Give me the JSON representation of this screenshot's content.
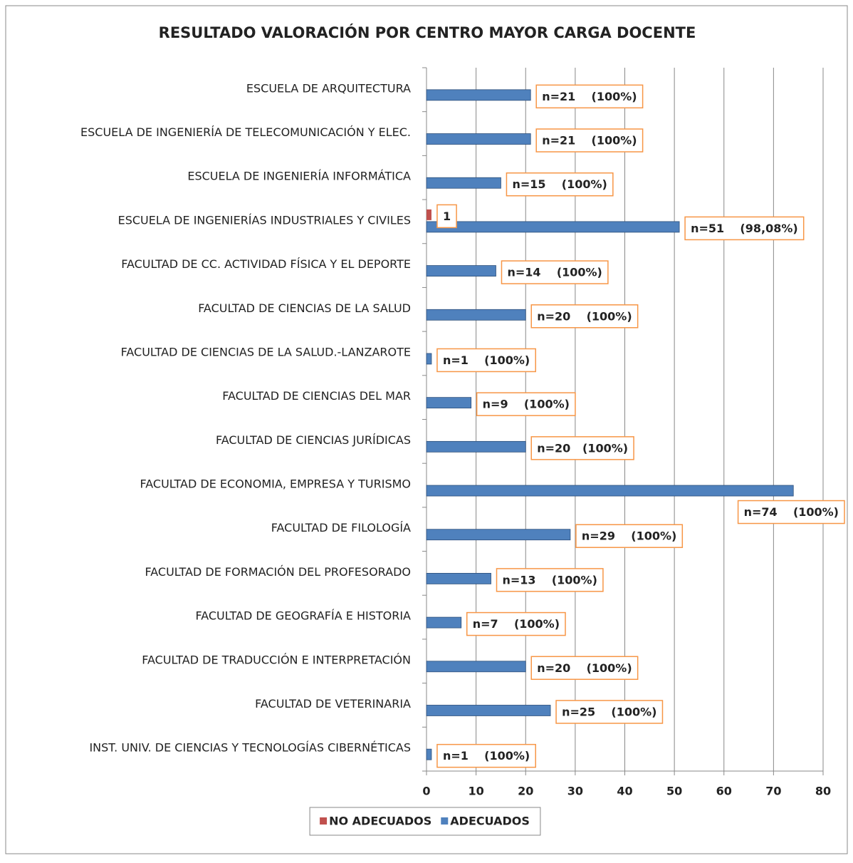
{
  "chart_data": {
    "type": "hbar",
    "title": "RESULTADO VALORACIÓN POR CENTRO MAYOR CARGA DOCENTE",
    "categories": [
      "ESCUELA DE ARQUITECTURA",
      "ESCUELA DE INGENIERÍA DE TELECOMUNICACIÓN Y ELEC.",
      "ESCUELA DE INGENIERÍA INFORMÁTICA",
      "ESCUELA DE INGENIERÍAS INDUSTRIALES Y CIVILES",
      "FACULTAD  DE CC. ACTIVIDAD FÍSICA Y EL DEPORTE",
      "FACULTAD DE CIENCIAS DE LA SALUD",
      "FACULTAD DE CIENCIAS DE LA SALUD.-LANZAROTE",
      "FACULTAD DE CIENCIAS DEL MAR",
      "FACULTAD DE CIENCIAS JURÍDICAS",
      "FACULTAD DE ECONOMIA, EMPRESA Y TURISMO",
      "FACULTAD DE FILOLOGÍA",
      "FACULTAD DE FORMACIÓN DEL PROFESORADO",
      "FACULTAD DE GEOGRAFÍA E HISTORIA",
      "FACULTAD DE TRADUCCIÓN E INTERPRETACIÓN",
      "FACULTAD DE VETERINARIA",
      "INST. UNIV. DE CIENCIAS Y TECNOLOGÍAS CIBERNÉTICAS"
    ],
    "series": [
      {
        "name": "NO ADECUADOS",
        "color": "#c0504d",
        "values": [
          0,
          0,
          0,
          1,
          0,
          0,
          0,
          0,
          0,
          0,
          0,
          0,
          0,
          0,
          0,
          0
        ],
        "value_labels": [
          null,
          null,
          null,
          "1",
          null,
          null,
          null,
          null,
          null,
          null,
          null,
          null,
          null,
          null,
          null,
          null
        ]
      },
      {
        "name": "ADECUADOS",
        "color": "#4f81bd",
        "values": [
          21,
          21,
          15,
          51,
          14,
          20,
          1,
          9,
          20,
          74,
          29,
          13,
          7,
          20,
          25,
          1
        ],
        "value_labels": [
          "n=21    (100%)",
          "n=21    (100%)",
          "n=15    (100%)",
          "n=51    (98,08%)",
          "n=14    (100%)",
          "n=20    (100%)",
          "n=1    (100%)",
          "n=9    (100%)",
          "n=20   (100%)",
          "n=74    (100%)",
          "n=29    (100%)",
          "n=13    (100%)",
          "n=7    (100%)",
          "n=20    (100%)",
          "n=25    (100%)",
          "n=1    (100%)"
        ]
      }
    ],
    "xlim": [
      0,
      80
    ],
    "xticks": [
      0,
      10,
      20,
      30,
      40,
      50,
      60,
      70,
      80
    ],
    "grid": true,
    "legend": "bottom"
  }
}
